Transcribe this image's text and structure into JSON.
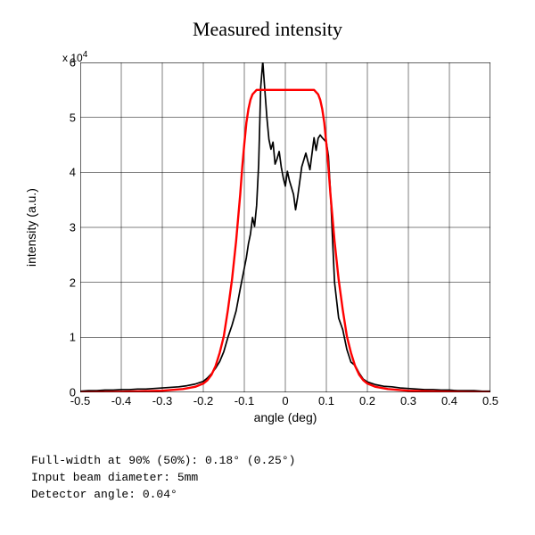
{
  "chart": {
    "type": "line",
    "title": "Measured  intensity",
    "title_fontsize": 22,
    "title_fontfamily": "serif",
    "xlabel": "angle (deg)",
    "ylabel": "intensity (a.u.)",
    "label_fontsize": 14,
    "exponent_label": "x 10",
    "exponent_power": "4",
    "xlim": [
      -0.5,
      0.5
    ],
    "ylim": [
      0,
      6
    ],
    "xtick_step": 0.1,
    "xticks": [
      "-0.5",
      "-0.4",
      "-0.3",
      "-0.2",
      "-0.1",
      "0",
      "0.1",
      "0.2",
      "0.3",
      "0.4",
      "0.5"
    ],
    "yticks": [
      "0",
      "1",
      "2",
      "3",
      "4",
      "5",
      "6"
    ],
    "grid_color": "#000000",
    "grid_linewidth": 0.5,
    "background_color": "#ffffff",
    "series": {
      "measured": {
        "color": "#000000",
        "linewidth": 1.7,
        "x": [
          -0.5,
          -0.48,
          -0.46,
          -0.44,
          -0.42,
          -0.4,
          -0.38,
          -0.36,
          -0.34,
          -0.32,
          -0.3,
          -0.28,
          -0.26,
          -0.24,
          -0.22,
          -0.2,
          -0.19,
          -0.18,
          -0.17,
          -0.16,
          -0.15,
          -0.14,
          -0.13,
          -0.12,
          -0.11,
          -0.1,
          -0.095,
          -0.09,
          -0.085,
          -0.08,
          -0.075,
          -0.07,
          -0.065,
          -0.06,
          -0.055,
          -0.05,
          -0.045,
          -0.04,
          -0.035,
          -0.03,
          -0.025,
          -0.02,
          -0.015,
          -0.01,
          -0.005,
          0.0,
          0.005,
          0.01,
          0.02,
          0.025,
          0.03,
          0.04,
          0.05,
          0.06,
          0.07,
          0.075,
          0.08,
          0.085,
          0.09,
          0.1,
          0.105,
          0.11,
          0.115,
          0.12,
          0.13,
          0.14,
          0.15,
          0.16,
          0.17,
          0.18,
          0.19,
          0.2,
          0.22,
          0.24,
          0.26,
          0.28,
          0.3,
          0.32,
          0.34,
          0.36,
          0.38,
          0.4,
          0.42,
          0.44,
          0.46,
          0.48,
          0.5
        ],
        "y": [
          0.02,
          0.03,
          0.03,
          0.04,
          0.04,
          0.05,
          0.05,
          0.06,
          0.06,
          0.07,
          0.08,
          0.09,
          0.1,
          0.12,
          0.15,
          0.2,
          0.26,
          0.34,
          0.44,
          0.56,
          0.74,
          1.0,
          1.22,
          1.48,
          1.88,
          2.26,
          2.45,
          2.7,
          2.88,
          3.18,
          3.02,
          3.4,
          4.15,
          5.55,
          6.02,
          5.5,
          5.0,
          4.6,
          4.42,
          4.55,
          4.15,
          4.25,
          4.38,
          4.1,
          3.9,
          3.75,
          4.02,
          3.85,
          3.6,
          3.32,
          3.55,
          4.1,
          4.35,
          4.05,
          4.63,
          4.4,
          4.62,
          4.68,
          4.63,
          4.55,
          4.3,
          3.65,
          2.8,
          2.0,
          1.35,
          1.14,
          0.78,
          0.55,
          0.49,
          0.35,
          0.24,
          0.19,
          0.14,
          0.11,
          0.1,
          0.08,
          0.07,
          0.06,
          0.05,
          0.05,
          0.04,
          0.04,
          0.03,
          0.03,
          0.03,
          0.02,
          0.02
        ]
      },
      "fit": {
        "color": "#ff0000",
        "linewidth": 2.4,
        "x": [
          -0.5,
          -0.4,
          -0.3,
          -0.25,
          -0.22,
          -0.2,
          -0.19,
          -0.18,
          -0.17,
          -0.16,
          -0.15,
          -0.14,
          -0.13,
          -0.12,
          -0.11,
          -0.105,
          -0.1,
          -0.095,
          -0.09,
          -0.085,
          -0.08,
          -0.07,
          -0.06,
          -0.05,
          -0.04,
          -0.02,
          0.0,
          0.02,
          0.04,
          0.05,
          0.06,
          0.07,
          0.08,
          0.085,
          0.09,
          0.095,
          0.1,
          0.105,
          0.11,
          0.12,
          0.13,
          0.14,
          0.15,
          0.16,
          0.17,
          0.18,
          0.19,
          0.2,
          0.22,
          0.25,
          0.3,
          0.4,
          0.5
        ],
        "y": [
          0.0,
          0.01,
          0.03,
          0.06,
          0.1,
          0.16,
          0.22,
          0.32,
          0.48,
          0.72,
          1.02,
          1.5,
          2.05,
          2.75,
          3.6,
          4.1,
          4.52,
          4.9,
          5.15,
          5.32,
          5.42,
          5.5,
          5.5,
          5.5,
          5.5,
          5.5,
          5.5,
          5.5,
          5.5,
          5.5,
          5.5,
          5.5,
          5.42,
          5.32,
          5.15,
          4.9,
          4.52,
          4.1,
          3.6,
          2.75,
          2.05,
          1.5,
          1.02,
          0.72,
          0.48,
          0.32,
          0.22,
          0.16,
          0.1,
          0.06,
          0.03,
          0.01,
          0.0
        ]
      }
    }
  },
  "caption": {
    "line1": "Full-width at 90% (50%): 0.18° (0.25°)",
    "line2": "Input beam diameter: 5mm",
    "line3": "Detector angle: 0.04°"
  }
}
